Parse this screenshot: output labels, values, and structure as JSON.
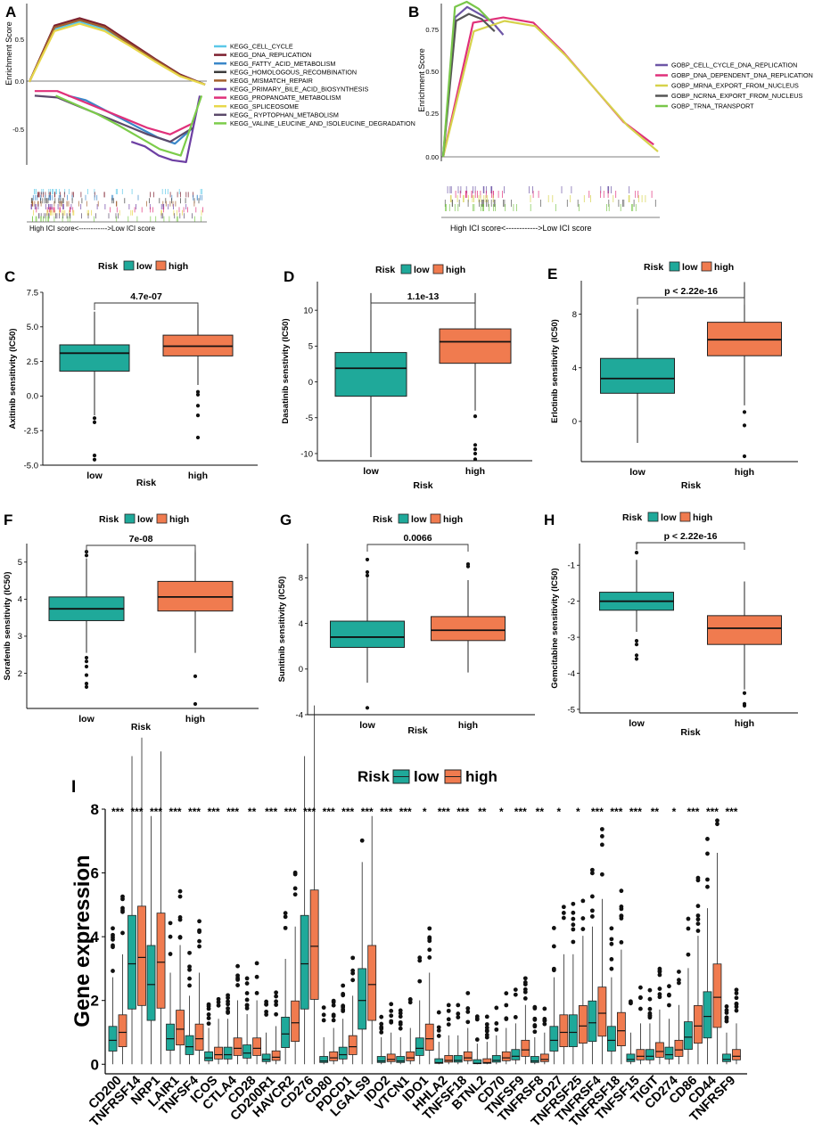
{
  "colors": {
    "low": "#1fa99a",
    "high": "#f07b4f",
    "kegg": [
      "#5bc8e8",
      "#7d1f2e",
      "#3a87c9",
      "#3c3c3c",
      "#a35f2e",
      "#6d3fa3",
      "#e0307a",
      "#e8d84b",
      "#5b4a6b",
      "#7ccc4a"
    ],
    "gobp": [
      "#6d56a6",
      "#e0307a",
      "#d6d24b",
      "#555555",
      "#79c64a"
    ]
  },
  "panels": {
    "A": {
      "letter": "A",
      "ylabel": "Enrichment Score",
      "yticks": [
        "0.5",
        "0.0",
        "-0.5"
      ],
      "footer": "High ICI score<------------>Low ICI score",
      "legend": [
        "KEGG_CELL_CYCLE",
        "KEGG_DNA_REPLICATION",
        "KEGG_FATTY_ACID_METABOLISM",
        "KEGG_HOMOLOGOUS_RECOMBINATION",
        "KEGG_MISMATCH_REPAIR",
        "KEGG_PRIMARY_BILE_ACID_BIOSYNTHESIS",
        "KEGG_PROPANOATE_METABOLISM",
        "KEGG_SPLICEOSOME",
        "KEGG_ RYPTOPHAN_METABOLISM",
        "KEGG_VALINE_LEUCINE_AND_ISOLEUCINE_DEGRADATION"
      ]
    },
    "B": {
      "letter": "B",
      "ylabel": "Enrichment Score",
      "yticks": [
        "0.75",
        "0.50",
        "0.25",
        "0.00"
      ],
      "footer": "High ICI score<------------>Low ICI score",
      "legend": [
        "GOBP_CELL_CYCLE_DNA_REPLICATION",
        "GOBP_DNA_DEPENDENT_DNA_REPLICATION",
        "GOBP_MRNA_EXPORT_FROM_NUCLEUS",
        "GOBP_NCRNA_EXPORT_FROM_NUCLEUS",
        "GOBP_TRNA_TRANSPORT"
      ]
    }
  },
  "legend": {
    "title": "Risk",
    "low": "low",
    "high": "high"
  },
  "chart_data": [
    {
      "type": "line",
      "panel": "A",
      "title": "",
      "xlabel": "",
      "ylabel": "Enrichment Score",
      "ylim": [
        -0.85,
        0.85
      ],
      "note": "GSEA running enrichment score curves (approximate)",
      "series": [
        {
          "name": "KEGG_CELL_CYCLE",
          "values": [
            0.05,
            0.62,
            0.7,
            0.62,
            0.45,
            0.28,
            0.12,
            0.02
          ]
        },
        {
          "name": "KEGG_DNA_REPLICATION",
          "values": [
            0.05,
            0.66,
            0.74,
            0.66,
            0.48,
            0.3,
            0.13,
            0.02
          ]
        },
        {
          "name": "KEGG_FATTY_ACID_METABOLISM",
          "values": [
            -0.1,
            -0.15,
            -0.25,
            -0.35,
            -0.45,
            -0.55,
            -0.62,
            -0.45
          ]
        },
        {
          "name": "KEGG_HOMOLOGOUS_RECOMBINATION",
          "values": [
            0.05,
            0.64,
            0.72,
            0.64,
            0.46,
            0.29,
            0.12,
            0.02
          ]
        },
        {
          "name": "KEGG_MISMATCH_REPAIR",
          "values": [
            0.05,
            0.64,
            0.72,
            0.64,
            0.46,
            0.29,
            0.12,
            0.02
          ]
        },
        {
          "name": "KEGG_PRIMARY_BILE_ACID_BIOSYNTHESIS",
          "values": [
            -0.6,
            -0.65,
            -0.75,
            -0.8,
            -0.82,
            -0.1
          ]
        },
        {
          "name": "KEGG_PROPANOATE_METABOLISM",
          "values": [
            -0.05,
            -0.05,
            -0.15,
            -0.25,
            -0.35,
            -0.45,
            -0.52,
            -0.4
          ]
        },
        {
          "name": "KEGG_SPLICEOSOME",
          "values": [
            0.05,
            0.6,
            0.68,
            0.6,
            0.44,
            0.27,
            0.11,
            0.02
          ]
        },
        {
          "name": "KEGG_ RYPTOPHAN_METABOLISM",
          "values": [
            -0.1,
            -0.12,
            -0.22,
            -0.32,
            -0.42,
            -0.52,
            -0.6,
            -0.45
          ]
        },
        {
          "name": "KEGG_VALINE_LEUCINE_AND_ISOLEUCINE_DEGRADATION",
          "values": [
            -0.1,
            -0.2,
            -0.3,
            -0.42,
            -0.55,
            -0.68,
            -0.75,
            -0.1
          ]
        }
      ]
    },
    {
      "type": "line",
      "panel": "B",
      "title": "",
      "xlabel": "",
      "ylabel": "Enrichment Score",
      "ylim": [
        0,
        0.9
      ],
      "note": "GSEA running enrichment score curves (approximate)",
      "series": [
        {
          "name": "GOBP_CELL_CYCLE_DNA_REPLICATION",
          "values": [
            0.0,
            0.8,
            0.86,
            0.82,
            0.78,
            0.7
          ]
        },
        {
          "name": "GOBP_DNA_DEPENDENT_DNA_REPLICATION",
          "values": [
            0.0,
            0.77,
            0.8,
            0.77,
            0.6,
            0.4,
            0.2,
            0.07
          ]
        },
        {
          "name": "GOBP_MRNA_EXPORT_FROM_NUCLEUS",
          "values": [
            0.0,
            0.72,
            0.78,
            0.75,
            0.58,
            0.38,
            0.18,
            0.03
          ]
        },
        {
          "name": "GOBP_NCRNA_EXPORT_FROM_NUCLEUS",
          "values": [
            0.0,
            0.78,
            0.82,
            0.79,
            0.72
          ]
        },
        {
          "name": "GOBP_TRNA_TRANSPORT",
          "values": [
            0.0,
            0.86,
            0.89,
            0.85,
            0.78
          ]
        }
      ]
    },
    {
      "type": "box",
      "panel": "C",
      "title": "",
      "xlabel": "Risk",
      "ylabel": "Axitinib sensitivity (IC50)",
      "ylim": [
        -5,
        7.5
      ],
      "yticks": [
        -5.0,
        -2.5,
        0.0,
        2.5,
        5.0,
        7.5
      ],
      "ytick_decimals": 1,
      "pvalue": "4.7e-07",
      "categories": [
        "low",
        "high"
      ],
      "boxes": [
        {
          "group": "low",
          "lower": -1.4,
          "q1": 1.8,
          "median": 3.1,
          "q3": 3.7,
          "upper": 6.1,
          "outliers": [
            -1.6,
            -1.9,
            -4.3,
            -4.6
          ]
        },
        {
          "group": "high",
          "lower": 0.8,
          "q1": 2.9,
          "median": 3.6,
          "q3": 4.4,
          "upper": 6.6,
          "outliers": [
            0.3,
            0.1,
            -0.7,
            -1.4,
            -3.0
          ]
        }
      ]
    },
    {
      "type": "box",
      "panel": "D",
      "title": "",
      "xlabel": "Risk",
      "ylabel": "Dasatinib senstivity (IC50)",
      "ylim": [
        -11,
        14
      ],
      "yticks": [
        -10,
        -5,
        0,
        5,
        10
      ],
      "ytick_decimals": 0,
      "pvalue": "1.1e-13",
      "categories": [
        "low",
        "high"
      ],
      "boxes": [
        {
          "group": "low",
          "lower": -10.5,
          "q1": -2.0,
          "median": 1.9,
          "q3": 4.1,
          "upper": 12.4,
          "outliers": []
        },
        {
          "group": "high",
          "lower": -4.0,
          "q1": 2.6,
          "median": 5.6,
          "q3": 7.4,
          "upper": 12.4,
          "outliers": [
            -4.8,
            -8.8,
            -9.4,
            -10.0,
            -10.8
          ]
        }
      ]
    },
    {
      "type": "box",
      "panel": "E",
      "title": "",
      "xlabel": "Risk",
      "ylabel": "Erlotinib sensitivity (IC50)",
      "ylim": [
        -3,
        10.5
      ],
      "yticks": [
        0,
        4,
        8
      ],
      "ytick_decimals": 0,
      "pvalue": "p < 2.22e-16",
      "categories": [
        "low",
        "high"
      ],
      "boxes": [
        {
          "group": "low",
          "lower": -1.6,
          "q1": 2.1,
          "median": 3.2,
          "q3": 4.7,
          "upper": 8.4,
          "outliers": []
        },
        {
          "group": "high",
          "lower": 1.2,
          "q1": 4.9,
          "median": 6.1,
          "q3": 7.4,
          "upper": 10.4,
          "outliers": [
            0.7,
            -0.3,
            -2.6
          ]
        }
      ]
    },
    {
      "type": "box",
      "panel": "F",
      "title": "",
      "xlabel": "Risk",
      "ylabel": "Sorafenib sensitivity (IC50)",
      "ylim": [
        1.05,
        5.5
      ],
      "yticks": [
        2,
        3,
        4,
        5
      ],
      "ytick_decimals": 0,
      "pvalue": "7e-08",
      "categories": [
        "low",
        "high"
      ],
      "boxes": [
        {
          "group": "low",
          "lower": 2.55,
          "q1": 3.42,
          "median": 3.74,
          "q3": 4.06,
          "upper": 5.1,
          "outliers": [
            5.28,
            5.18,
            2.42,
            2.32,
            2.18,
            1.95,
            1.72,
            1.63
          ]
        },
        {
          "group": "high",
          "lower": 2.55,
          "q1": 3.68,
          "median": 4.06,
          "q3": 4.48,
          "upper": 5.32,
          "outliers": [
            1.92,
            1.17
          ]
        }
      ]
    },
    {
      "type": "box",
      "panel": "G",
      "title": "",
      "xlabel": "Risk",
      "ylabel": "Sunitinib sensitivity (IC50)",
      "ylim": [
        -4,
        11
      ],
      "yticks": [
        -4,
        0,
        4,
        8
      ],
      "ytick_decimals": 0,
      "pvalue": "0.0066",
      "categories": [
        "low",
        "high"
      ],
      "boxes": [
        {
          "group": "low",
          "lower": -1.2,
          "q1": 1.9,
          "median": 2.8,
          "q3": 4.2,
          "upper": 8.0,
          "outliers": [
            9.6,
            8.5,
            8.2,
            -3.4
          ]
        },
        {
          "group": "high",
          "lower": -0.3,
          "q1": 2.5,
          "median": 3.4,
          "q3": 4.6,
          "upper": 7.8,
          "outliers": [
            9.2,
            9.0
          ]
        }
      ]
    },
    {
      "type": "box",
      "panel": "H",
      "title": "",
      "xlabel": "Risk",
      "ylabel": "Gemcitabine sensitivity (IC50)",
      "ylim": [
        -5.1,
        -0.4
      ],
      "yticks": [
        -5,
        -4,
        -3,
        -2,
        -1
      ],
      "ytick_decimals": 0,
      "pvalue": "p < 2.22e-16",
      "categories": [
        "low",
        "high"
      ],
      "boxes": [
        {
          "group": "low",
          "lower": -2.85,
          "q1": -2.25,
          "median": -2.0,
          "q3": -1.75,
          "upper": -0.85,
          "outliers": [
            -0.65,
            -3.1,
            -3.2,
            -3.5,
            -3.6
          ]
        },
        {
          "group": "high",
          "lower": -4.45,
          "q1": -3.2,
          "median": -2.75,
          "q3": -2.4,
          "upper": -1.45,
          "outliers": [
            -4.55,
            -4.85,
            -4.9
          ]
        }
      ]
    },
    {
      "type": "box",
      "panel": "I",
      "title": "",
      "xlabel": "",
      "ylabel": "Gene expression",
      "ylim": [
        -0.3,
        8.0
      ],
      "yticks": [
        0,
        2,
        4,
        6,
        8
      ],
      "ytick_decimals": 0,
      "categories": [
        "CD200",
        "TNFRSF14",
        "NRP1",
        "LAIR1",
        "TNFSF4",
        "ICOS",
        "CTLA4",
        "CD28",
        "CD200R1",
        "HAVCR2",
        "CD276",
        "CD80",
        "PDCD1",
        "LGALS9",
        "IDO2",
        "VTCN1",
        "IDO1",
        "HHLA2",
        "TNFSF18",
        "BTNL2",
        "CD70",
        "TNFSF9",
        "TNFRSF8",
        "CD27",
        "TNFRSF25",
        "TNFRSF4",
        "TNFRSF18",
        "TNFSF15",
        "TIGIT",
        "CD274",
        "CD86",
        "CD44",
        "TNFRSF9"
      ],
      "significance": [
        "***",
        "***",
        "***",
        "***",
        "***",
        "***",
        "***",
        "**",
        "***",
        "***",
        "***",
        "***",
        "***",
        "***",
        "***",
        "***",
        "*",
        "***",
        "***",
        "**",
        "*",
        "***",
        "**",
        "*",
        "*",
        "***",
        "***",
        "***",
        "**",
        "*",
        "***",
        "***",
        "***"
      ],
      "low_median": [
        0.75,
        3.15,
        2.5,
        0.8,
        0.55,
        0.2,
        0.3,
        0.35,
        0.15,
        0.95,
        3.15,
        0.1,
        0.3,
        2.0,
        0.1,
        0.1,
        0.5,
        0.05,
        0.12,
        0.03,
        0.12,
        0.25,
        0.1,
        0.75,
        1.0,
        1.3,
        0.75,
        0.15,
        0.25,
        0.3,
        0.85,
        1.5,
        0.15
      ],
      "high_median": [
        1.0,
        3.35,
        3.2,
        1.1,
        0.8,
        0.3,
        0.5,
        0.5,
        0.22,
        1.3,
        3.7,
        0.2,
        0.55,
        2.5,
        0.15,
        0.2,
        0.8,
        0.12,
        0.2,
        0.05,
        0.2,
        0.45,
        0.15,
        1.0,
        1.2,
        1.6,
        1.05,
        0.25,
        0.4,
        0.45,
        1.2,
        2.1,
        0.25
      ]
    }
  ]
}
